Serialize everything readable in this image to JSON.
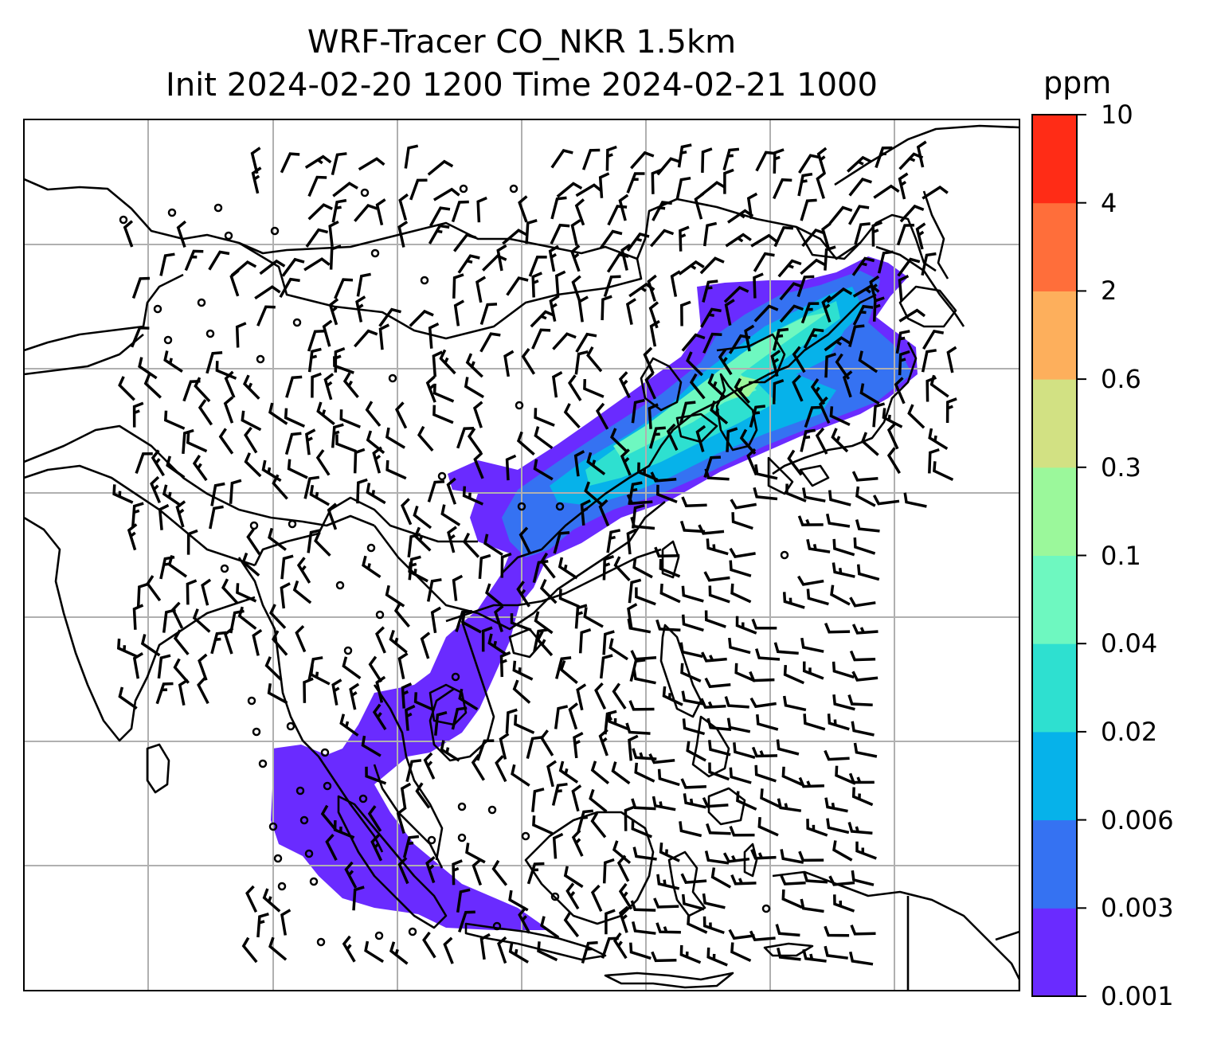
{
  "title": {
    "line1": "WRF-Tracer CO_NKR 1.5km",
    "line2": "Init 2024-02-20 1200 Time 2024-02-21 1000"
  },
  "colorbar": {
    "unit": "ppm",
    "levels": [
      "0.001",
      "0.003",
      "0.006",
      "0.02",
      "0.04",
      "0.1",
      "0.3",
      "0.6",
      "2",
      "4",
      "10"
    ],
    "colors": [
      "#6a2bff",
      "#3572f2",
      "#06b2ea",
      "#2ee0d0",
      "#6ef8c0",
      "#9bf89b",
      "#d2e183",
      "#fdaf5c",
      "#ff6e3a",
      "#ff2c16"
    ]
  },
  "map": {
    "gridlines": true,
    "coastline_color": "#000000",
    "wind_barbs": true
  },
  "chart_data": {
    "type": "heatmap",
    "variable": "CO_NKR tracer",
    "unit": "ppm",
    "contour_levels": [
      0.001,
      0.003,
      0.006,
      0.02,
      0.04,
      0.1,
      0.3,
      0.6,
      2,
      4,
      10
    ],
    "plume": "low-concentration band (0.001–0.1 ppm) extending from the Indonesian archipelago north-east along the Indochina coast to Korea and Japan"
  }
}
